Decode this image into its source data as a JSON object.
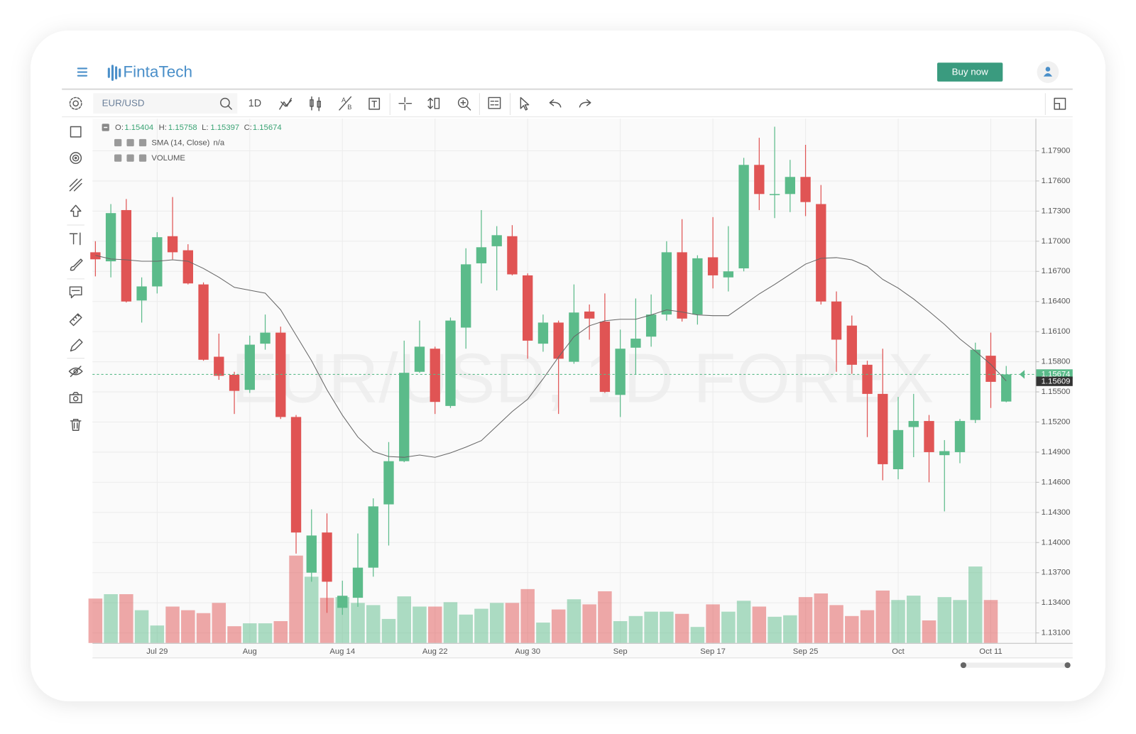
{
  "header": {
    "logo": "FintaTech",
    "buy_button": "Buy now"
  },
  "toolbar": {
    "symbol": "EUR/USD",
    "interval": "1D"
  },
  "chart_data": {
    "type": "candlestick",
    "watermark": "EUR/USD, 1D FOREX",
    "legend_labels": [
      "O:",
      "H:",
      "L:",
      "C:"
    ],
    "up_color": "#5bbb8a",
    "down_color": "#e05454",
    "categories": [
      null,
      null,
      null,
      null,
      "Jul 29",
      null,
      null,
      null,
      null,
      null,
      "Aug",
      null,
      null,
      null,
      null,
      null,
      "Aug 14",
      null,
      null,
      null,
      null,
      null,
      "Aug 22",
      null,
      null,
      null,
      null,
      null,
      "Aug 30",
      null,
      null,
      null,
      null,
      null,
      "Sep",
      null,
      null,
      null,
      null,
      null,
      "Sep 17",
      null,
      null,
      null,
      null,
      null,
      "Sep 25",
      null,
      null,
      null,
      null,
      null,
      "Oct",
      null,
      null,
      null,
      null,
      null,
      "Oct 11",
      null
    ],
    "open": [
      1.1689,
      1.168,
      1.1731,
      1.1641,
      1.1655,
      1.1705,
      1.1691,
      1.1657,
      1.1585,
      1.1567,
      1.1552,
      1.1598,
      1.1609,
      1.1525,
      1.137,
      1.141,
      1.1335,
      1.1345,
      1.1375,
      1.1438,
      1.1481,
      1.157,
      1.1593,
      1.1536,
      1.1614,
      1.1678,
      1.1695,
      1.1705,
      1.1666,
      1.1598,
      1.1619,
      1.158,
      1.163,
      1.162,
      1.1547,
      1.1594,
      1.1605,
      1.1627,
      1.1689,
      1.1627,
      1.1684,
      1.1664,
      1.1673,
      1.1776,
      1.1746,
      1.1747,
      1.1764,
      1.1737,
      1.164,
      1.1616,
      1.1577,
      1.1548,
      1.1473,
      1.1515,
      1.1521,
      1.1487,
      1.149,
      1.1522,
      1.1586,
      1.15404
    ],
    "high": [
      1.17,
      1.1737,
      1.1742,
      1.1664,
      1.1709,
      1.1744,
      1.1697,
      1.1659,
      1.1608,
      1.157,
      1.1606,
      1.1627,
      1.1615,
      1.1527,
      1.1433,
      1.1429,
      1.1362,
      1.1409,
      1.1444,
      1.15,
      1.1601,
      1.1621,
      1.1595,
      1.1624,
      1.1693,
      1.1731,
      1.1715,
      1.1716,
      1.1668,
      1.1627,
      1.1621,
      1.1657,
      1.1637,
      1.1648,
      1.1612,
      1.1643,
      1.1647,
      1.17,
      1.1722,
      1.1686,
      1.1724,
      1.1715,
      1.1783,
      1.1803,
      1.1814,
      1.1781,
      1.1796,
      1.1756,
      1.165,
      1.1626,
      1.1581,
      1.1593,
      1.1545,
      1.1548,
      1.1527,
      1.1502,
      1.1523,
      1.1599,
      1.1609,
      1.15758
    ],
    "low": [
      1.1665,
      1.1664,
      1.1639,
      1.1619,
      1.1648,
      1.1682,
      1.1657,
      1.1581,
      1.1562,
      1.1528,
      1.1549,
      1.1592,
      1.1523,
      1.1389,
      1.1361,
      1.133,
      1.1328,
      1.1336,
      1.1366,
      1.1397,
      1.148,
      1.1569,
      1.1528,
      1.1534,
      1.1593,
      1.1658,
      1.1651,
      1.1666,
      1.1583,
      1.159,
      1.1528,
      1.1578,
      1.1602,
      1.1549,
      1.1525,
      1.1567,
      1.1595,
      1.1621,
      1.162,
      1.1617,
      1.1653,
      1.165,
      1.167,
      1.1731,
      1.1723,
      1.1729,
      1.1725,
      1.1637,
      1.157,
      1.1568,
      1.1505,
      1.1462,
      1.1463,
      1.1485,
      1.146,
      1.1431,
      1.1479,
      1.1519,
      1.1534,
      1.15397
    ],
    "close": [
      1.1682,
      1.1728,
      1.164,
      1.1655,
      1.1704,
      1.1689,
      1.1658,
      1.1582,
      1.1566,
      1.1551,
      1.1597,
      1.1609,
      1.1525,
      1.141,
      1.1407,
      1.1361,
      1.1347,
      1.1375,
      1.1436,
      1.1481,
      1.1569,
      1.1595,
      1.154,
      1.1621,
      1.1677,
      1.1694,
      1.1706,
      1.1667,
      1.1601,
      1.1619,
      1.1583,
      1.1629,
      1.1623,
      1.155,
      1.1593,
      1.1603,
      1.1627,
      1.1689,
      1.1623,
      1.1683,
      1.1666,
      1.167,
      1.1776,
      1.1747,
      1.1747,
      1.1764,
      1.1739,
      1.164,
      1.1602,
      1.1577,
      1.1548,
      1.1478,
      1.1512,
      1.1521,
      1.149,
      1.1491,
      1.1521,
      1.1592,
      1.156,
      1.15674
    ],
    "sma": {
      "name": "SMA (14, Close)",
      "value_text": "n/a",
      "color": "#666666",
      "values": [
        1.16859,
        1.16823,
        1.16815,
        1.16801,
        1.16801,
        1.16815,
        1.16801,
        1.16729,
        1.16642,
        1.16541,
        1.16512,
        1.16483,
        1.16317,
        1.16064,
        1.15811,
        1.15521,
        1.15268,
        1.15051,
        1.14907,
        1.14856,
        1.14849,
        1.14871,
        1.14849,
        1.14892,
        1.1495,
        1.15015,
        1.1516,
        1.15304,
        1.15427,
        1.1563,
        1.15847,
        1.16049,
        1.16158,
        1.16208,
        1.16223,
        1.16223,
        1.16266,
        1.16317,
        1.16295,
        1.16266,
        1.16259,
        1.16259,
        1.16367,
        1.16476,
        1.1657,
        1.16671,
        1.16772,
        1.1683,
        1.16837,
        1.16815,
        1.1675,
        1.1662,
        1.16534,
        1.16425,
        1.16302,
        1.16172,
        1.16027,
        1.15905,
        1.15774,
        1.15609
      ]
    },
    "volume": {
      "name": "VOLUME",
      "values": [
        61,
        67,
        67,
        45,
        24,
        50,
        45,
        41,
        55,
        23,
        27,
        27,
        30,
        120,
        91,
        62,
        63,
        55,
        52,
        33,
        64,
        50,
        50,
        56,
        39,
        47,
        55,
        55,
        74,
        28,
        46,
        60,
        53,
        71,
        30,
        37,
        43,
        43,
        40,
        22,
        53,
        43,
        58,
        50,
        36,
        38,
        63,
        68,
        52,
        37,
        45,
        72,
        59,
        65,
        31,
        63,
        59,
        105,
        59,
        null
      ]
    },
    "ylim": [
      1.13,
      1.1822
    ],
    "yticks": [
      {
        "value": 1.131,
        "label": "1.13100"
      },
      {
        "value": 1.134,
        "label": "1.13400"
      },
      {
        "value": 1.137,
        "label": "1.13700"
      },
      {
        "value": 1.14,
        "label": "1.14000"
      },
      {
        "value": 1.143,
        "label": "1.14300"
      },
      {
        "value": 1.146,
        "label": "1.14600"
      },
      {
        "value": 1.149,
        "label": "1.14900"
      },
      {
        "value": 1.152,
        "label": "1.15200"
      },
      {
        "value": 1.155,
        "label": "1.15500"
      },
      {
        "value": 1.158,
        "label": "1.15800"
      },
      {
        "value": 1.161,
        "label": "1.16100"
      },
      {
        "value": 1.164,
        "label": "1.16400"
      },
      {
        "value": 1.167,
        "label": "1.16700"
      },
      {
        "value": 1.17,
        "label": "1.17000"
      },
      {
        "value": 1.173,
        "label": "1.17300"
      },
      {
        "value": 1.176,
        "label": "1.17600"
      },
      {
        "value": 1.179,
        "label": "1.17900"
      }
    ],
    "grid": true
  }
}
